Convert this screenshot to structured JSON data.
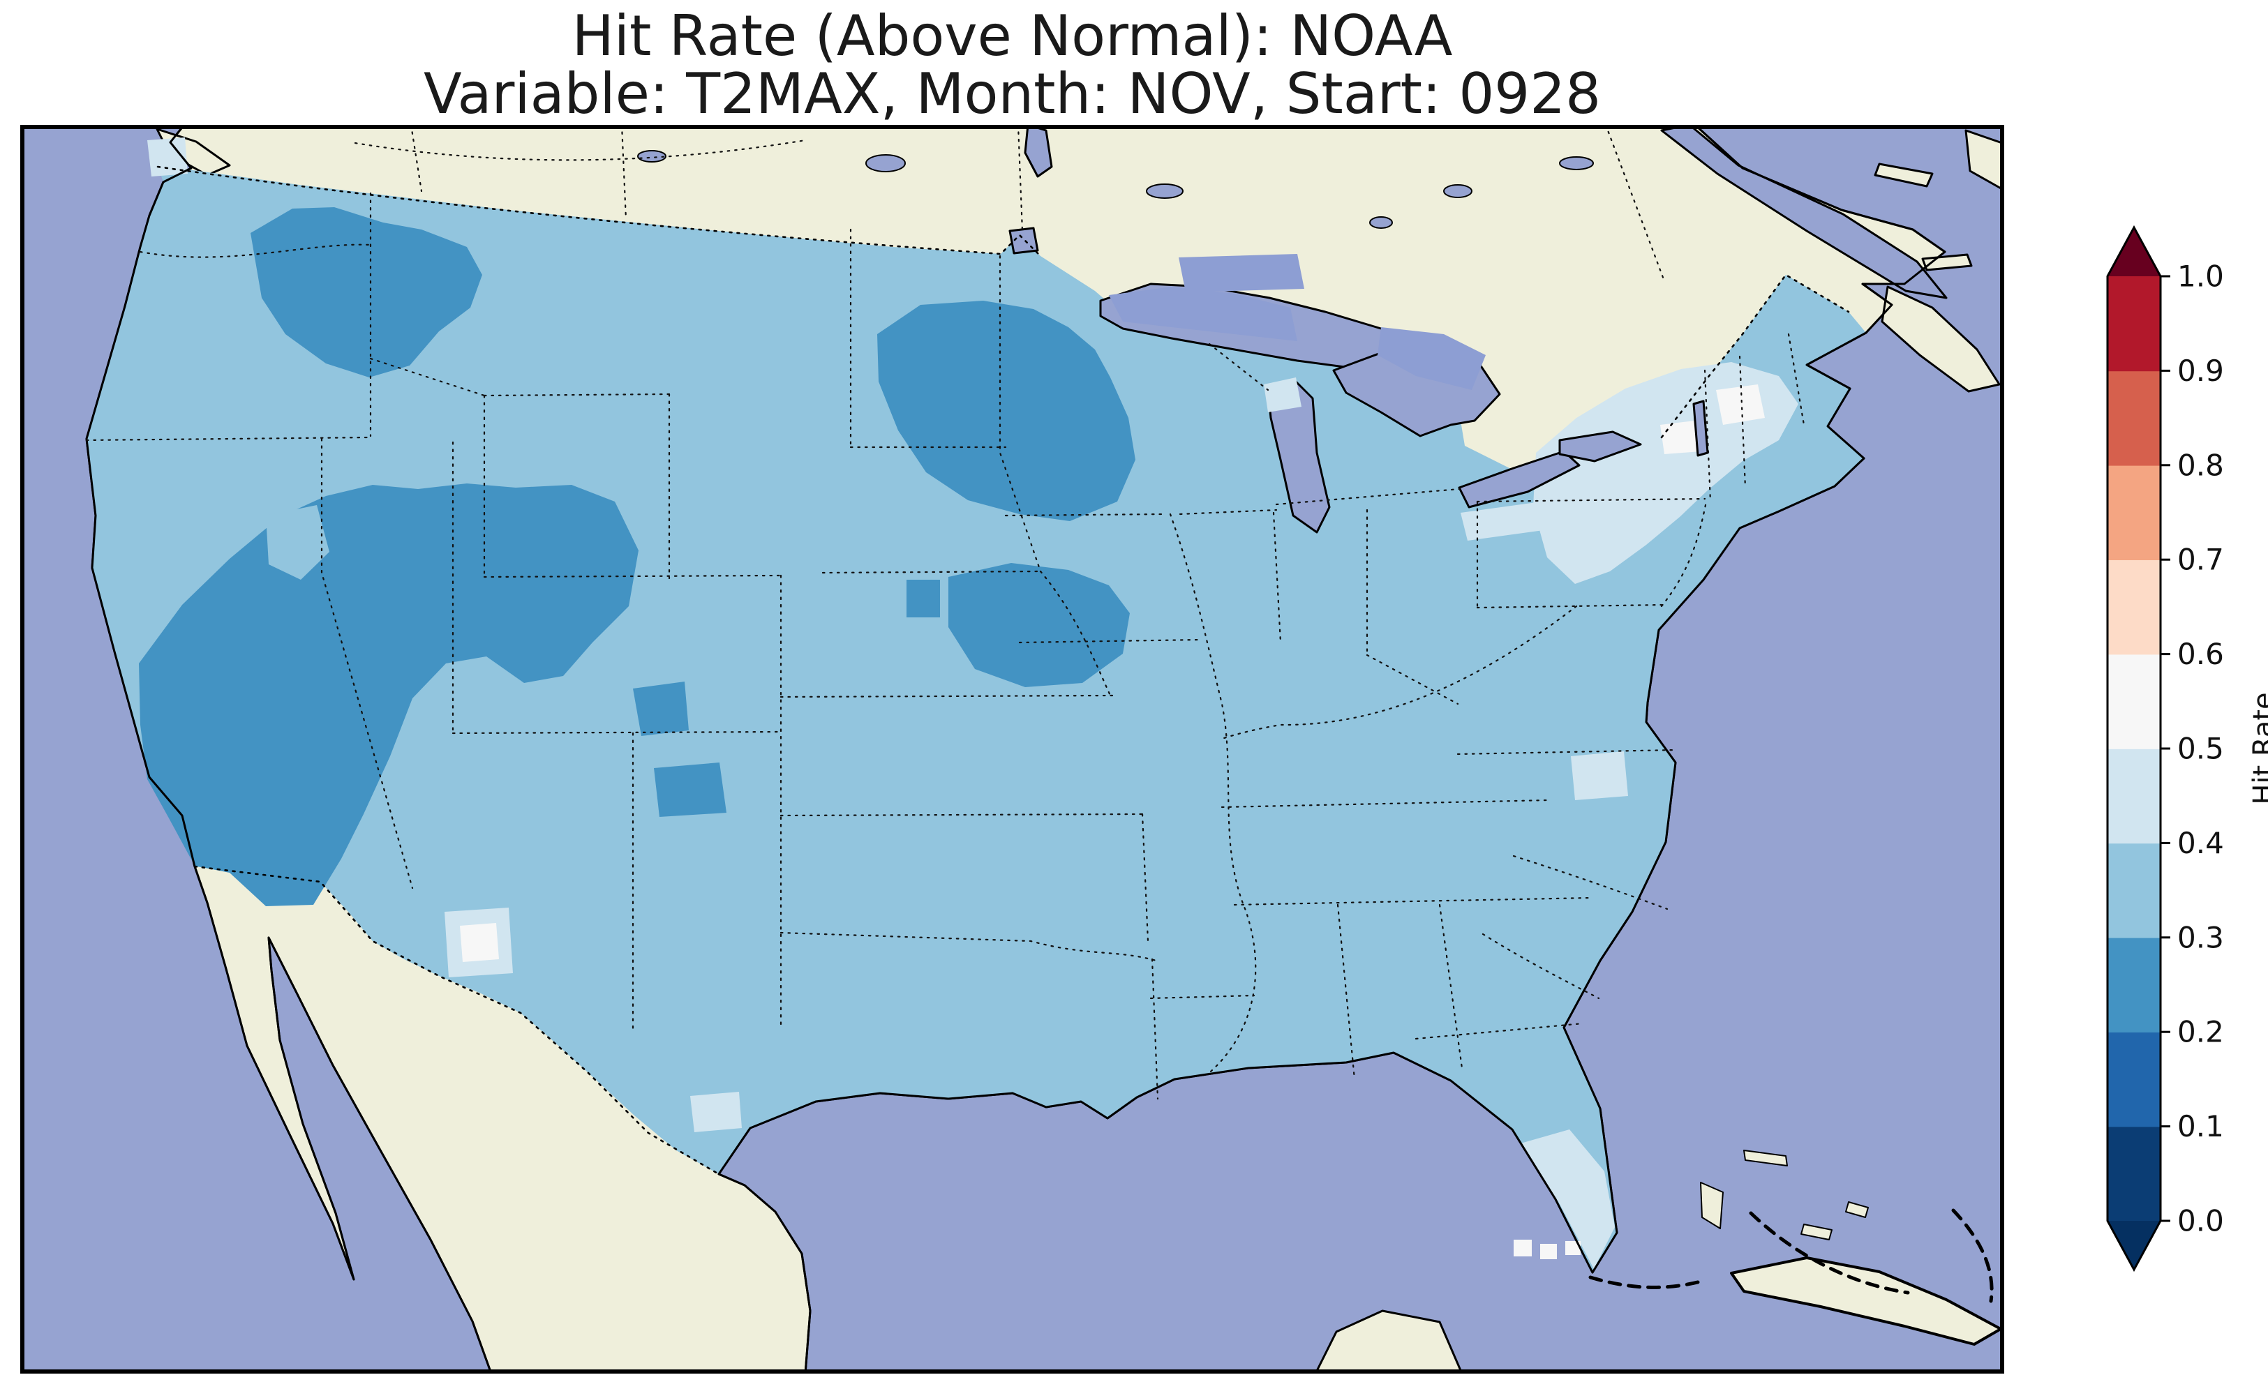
{
  "figure": {
    "title_line1": "Hit Rate (Above Normal): NOAA",
    "title_line2": "Variable: T2MAX, Month: NOV, Start: 0928"
  },
  "colorbar": {
    "label": "Hit Rate",
    "tick_labels_top_to_bottom": [
      "1.0",
      "0.9",
      "0.8",
      "0.7",
      "0.6",
      "0.5",
      "0.4",
      "0.3",
      "0.2",
      "0.1",
      "0.0"
    ],
    "segment_colors_bottom_to_top": [
      "#0b3d74",
      "#2166ac",
      "#4393c3",
      "#92c5de",
      "#d1e5f0",
      "#f7f7f7",
      "#fddbc7",
      "#f4a582",
      "#d6604d",
      "#b2182b"
    ],
    "under_arrow_color": "#053061",
    "over_arrow_color": "#67001f"
  },
  "map": {
    "colors": {
      "ocean": "#96a3d1",
      "land": "#efefdb",
      "lake_data_overlay": "#8d9ed3",
      "hit_02_03": "#4393c3",
      "hit_03_04": "#92c5de",
      "hit_04_05": "#d1e5f0",
      "hit_05_06": "#f7f7f7",
      "coastline": "#000000"
    }
  },
  "chart_data": {
    "type": "heatmap",
    "title": "Hit Rate (Above Normal): NOAA",
    "subtitle": "Variable: T2MAX, Month: NOV, Start: 0928",
    "region": "Continental United States (gridded forecast hit rate map)",
    "colorbar_label": "Hit Rate",
    "colorbar_ticks": [
      0.0,
      0.1,
      0.2,
      0.3,
      0.4,
      0.5,
      0.6,
      0.7,
      0.8,
      0.9,
      1.0
    ],
    "colormap": "RdBu_r (discrete, 0.1 bins, extended arrows both ends)",
    "value_summary": [
      {
        "region": "Most of CONUS (Pacific NW, Plains, South, Midwest, Texas, Gulf states)",
        "hit_rate": "0.3-0.4"
      },
      {
        "region": "Great Basin: Nevada, Utah, western Colorado, southern California, western Arizona",
        "hit_rate": "0.2-0.3"
      },
      {
        "region": "Northern Rockies: northern Idaho / western Montana / NE Washington",
        "hit_rate": "0.2-0.3"
      },
      {
        "region": "Minnesota / Wisconsin",
        "hit_rate": "0.2-0.3"
      },
      {
        "region": "Iowa",
        "hit_rate": "0.2-0.3"
      },
      {
        "region": "SW Colorado / northern New Mexico spots",
        "hit_rate": "0.2-0.3"
      },
      {
        "region": "Northeast: upstate New York, Vermont, New Hampshire, New England",
        "hit_rate": "0.4-0.5 with 0.5-0.6 spots"
      },
      {
        "region": "Central New Mexico spot",
        "hit_rate": "0.5-0.6"
      },
      {
        "region": "Southern Florida",
        "hit_rate": "0.4-0.5 with 0.5-0.6 cells near the Keys"
      },
      {
        "region": "Olympic Peninsula WA, mid-Atlantic coastal spots",
        "hit_rate": "0.4-0.5"
      }
    ]
  }
}
